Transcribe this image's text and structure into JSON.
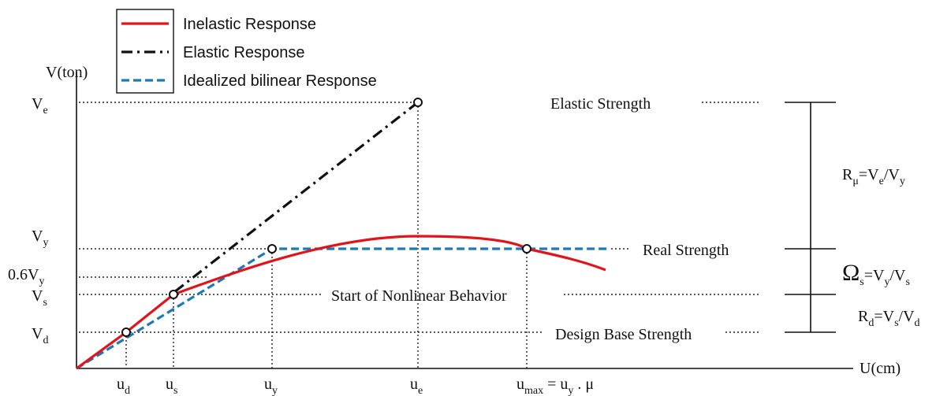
{
  "legend": [
    {
      "label": "Inelastic Response",
      "color": "#e0141b"
    },
    {
      "label": "Elastic Response",
      "color": "#111111"
    },
    {
      "label": "Idealized bilinear Response",
      "color": "#1e78b4"
    }
  ],
  "axes": {
    "y_label": "V(ton)",
    "x_label": "U(cm)"
  },
  "y_levels": [
    [
      "V",
      "e"
    ],
    [
      "V",
      "y"
    ],
    [
      "0.6V",
      "y"
    ],
    [
      "V",
      "s"
    ],
    [
      "V",
      "d"
    ]
  ],
  "x_points": [
    [
      "u",
      "d"
    ],
    [
      "u",
      "s"
    ],
    [
      "u",
      "y"
    ],
    [
      "u",
      "e"
    ],
    [
      "u",
      "max",
      " = u",
      "y",
      " . μ"
    ]
  ],
  "annotations": [
    "Elastic Strength",
    "Real Strength",
    "Start of Nonlinear Behavior",
    "Design Base Strength"
  ],
  "ratios": [
    [
      "R",
      "μ",
      "=V",
      "e",
      "/V",
      "y"
    ],
    [
      "Ω",
      "s",
      "=V",
      "y",
      "/V",
      "s"
    ],
    [
      "R",
      "d",
      "=V",
      "s",
      "/V",
      "d"
    ]
  ]
}
